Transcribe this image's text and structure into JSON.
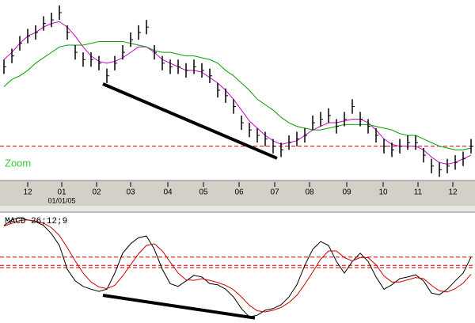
{
  "chart_data": [
    {
      "type": "ohlc",
      "annotation": "Zoom",
      "xlim": [
        0,
        59
      ],
      "ylim": [
        0,
        100
      ],
      "xticks": [
        {
          "value": 3,
          "label": "12"
        },
        {
          "value": 7.3,
          "label": "01"
        },
        {
          "value": 11.7,
          "label": "02"
        },
        {
          "value": 16,
          "label": "03"
        },
        {
          "value": 20.7,
          "label": "04"
        },
        {
          "value": 25.2,
          "label": "05"
        },
        {
          "value": 29.7,
          "label": "06"
        },
        {
          "value": 34.2,
          "label": "07"
        },
        {
          "value": 38.6,
          "label": "08"
        },
        {
          "value": 43.3,
          "label": "09"
        },
        {
          "value": 47.9,
          "label": "10"
        },
        {
          "value": 52.3,
          "label": "11"
        },
        {
          "value": 56.7,
          "label": "12"
        }
      ],
      "xsublabels": [
        {
          "value": 7.3,
          "label": "01/01/05"
        }
      ],
      "color": "#000000",
      "high": [
        67,
        73,
        80,
        84,
        86,
        91,
        93,
        97,
        86,
        75,
        71,
        71,
        69,
        62,
        69,
        75,
        82,
        86,
        89,
        75,
        69,
        67,
        67,
        65,
        67,
        65,
        62,
        54,
        51,
        45,
        36,
        32,
        29,
        27,
        23,
        21,
        25,
        27,
        29,
        36,
        38,
        40,
        34,
        38,
        45,
        38,
        34,
        29,
        23,
        21,
        23,
        25,
        25,
        18,
        12,
        10,
        12,
        14,
        16,
        23
      ],
      "low": [
        59,
        65,
        72,
        76,
        78,
        83,
        85,
        89,
        78,
        67,
        63,
        63,
        61,
        54,
        61,
        67,
        74,
        78,
        81,
        67,
        61,
        59,
        59,
        57,
        59,
        57,
        54,
        46,
        43,
        37,
        28,
        24,
        21,
        19,
        15,
        13,
        17,
        19,
        21,
        28,
        30,
        32,
        26,
        30,
        37,
        30,
        26,
        21,
        15,
        13,
        15,
        17,
        17,
        10,
        4,
        2,
        4,
        6,
        8,
        15
      ],
      "close": [
        63,
        69,
        76,
        80,
        82,
        87,
        89,
        93,
        82,
        71,
        67,
        67,
        65,
        58,
        65,
        71,
        78,
        82,
        85,
        71,
        65,
        63,
        63,
        61,
        63,
        61,
        58,
        50,
        47,
        41,
        32,
        28,
        25,
        23,
        19,
        17,
        21,
        23,
        25,
        32,
        34,
        36,
        30,
        34,
        41,
        34,
        30,
        25,
        19,
        17,
        19,
        21,
        21,
        14,
        8,
        6,
        8,
        10,
        12,
        19
      ],
      "lines": [
        {
          "color": "#cc00cc",
          "values": [
            67,
            71,
            76,
            80,
            82,
            85,
            87,
            88,
            85,
            80,
            74,
            69,
            66,
            65,
            66,
            68,
            71,
            74,
            74,
            71,
            67,
            65,
            63,
            61,
            61,
            60,
            57,
            54,
            50,
            45,
            39,
            33,
            29,
            25,
            22,
            20,
            21,
            22,
            25,
            28,
            30,
            32,
            32,
            33,
            34,
            34,
            32,
            28,
            23,
            20,
            19,
            19,
            19,
            17,
            13,
            10,
            9,
            10,
            12,
            14
          ]
        },
        {
          "color": "#00a000",
          "values": [
            52,
            56,
            58,
            61,
            65,
            68,
            71,
            74,
            75,
            75,
            75,
            76,
            77,
            77,
            77,
            77,
            76,
            75,
            74,
            72,
            71,
            71,
            70,
            69,
            69,
            68,
            67,
            65,
            61,
            58,
            54,
            50,
            45,
            42,
            39,
            35,
            32,
            30,
            29,
            28,
            28,
            29,
            30,
            31,
            31,
            31,
            31,
            30,
            29,
            28,
            26,
            25,
            25,
            23,
            21,
            19,
            18,
            17,
            17,
            18
          ]
        }
      ],
      "trendline": {
        "color": "#000000",
        "x": [
          12.5,
          34.5
        ],
        "y": [
          53.5,
          12.3
        ]
      },
      "hlines": {
        "color": "#cc0000",
        "values": [
          19
        ]
      }
    },
    {
      "type": "line",
      "title": "MACD 26;12;9",
      "xlim": [
        0,
        59
      ],
      "ylim": [
        -10,
        10
      ],
      "series": [
        {
          "color": "#000000",
          "values": [
            7.6,
            8.6,
            9.0,
            8.6,
            8.3,
            7.6,
            6.1,
            4.0,
            -0.3,
            -2.4,
            -3.4,
            -3.9,
            -4.3,
            -3.9,
            -1.0,
            2.6,
            4.3,
            5.4,
            5.7,
            3.3,
            -0.3,
            -2.9,
            -3.4,
            -2.4,
            -1.4,
            -1.7,
            -2.9,
            -3.1,
            -3.9,
            -5.3,
            -7.4,
            -8.9,
            -8.6,
            -7.7,
            -7.4,
            -6.7,
            -5.3,
            -3.1,
            0.4,
            3.3,
            4.7,
            4.0,
            1.1,
            -1.0,
            1.1,
            2.6,
            1.1,
            -1.7,
            -3.9,
            -3.1,
            -2.0,
            -1.7,
            -1.3,
            -2.4,
            -4.6,
            -4.9,
            -3.9,
            -2.4,
            -1.0,
            1.9
          ]
        },
        {
          "color": "#cc0000",
          "values": [
            7.5,
            8.0,
            8.5,
            8.6,
            8.4,
            8.0,
            7.2,
            5.8,
            3.6,
            1.2,
            -1.0,
            -2.6,
            -3.5,
            -3.8,
            -3.2,
            -1.5,
            0.5,
            2.5,
            4.0,
            4.3,
            3.0,
            1.0,
            -1.0,
            -2.2,
            -2.3,
            -2.0,
            -2.3,
            -2.7,
            -3.2,
            -4.0,
            -5.3,
            -6.8,
            -7.8,
            -8.0,
            -7.7,
            -7.2,
            -6.3,
            -5.0,
            -3.0,
            -0.8,
            1.5,
            3.0,
            3.0,
            1.8,
            1.2,
            1.8,
            1.8,
            0.5,
            -1.5,
            -2.6,
            -2.6,
            -2.2,
            -1.8,
            -2.0,
            -3.2,
            -4.2,
            -4.4,
            -3.8,
            -2.8,
            -1.2
          ]
        }
      ],
      "trendline": {
        "color": "#000000",
        "x": [
          12.5,
          31.7
        ],
        "y": [
          -5.0,
          -9.1
        ]
      },
      "hlines": {
        "color": "#cc0000",
        "values": [
          1.9,
          0.4,
          0
        ]
      }
    }
  ]
}
